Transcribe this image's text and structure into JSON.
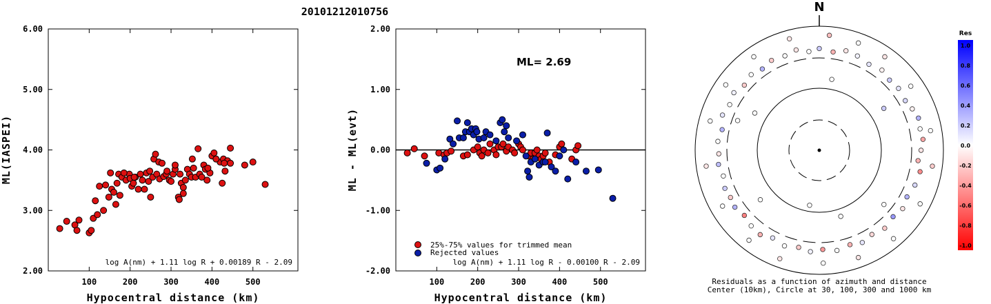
{
  "title": "20101212010756",
  "chart_data": [
    {
      "type": "scatter",
      "xlabel": "Hypocentral distance (km)",
      "ylabel": "ML(IASPEI)",
      "xlim": [
        0,
        610
      ],
      "ylim": [
        2.0,
        6.0
      ],
      "xticks": [
        100,
        200,
        300,
        400,
        500
      ],
      "yticks": [
        "2.00",
        "3.00",
        "4.00",
        "5.00",
        "6.00"
      ],
      "formula": "log A(nm) + 1.11 log R + 0.00189 R - 2.09",
      "point_color": "#dd1111",
      "series": [
        {
          "x": [
            28,
            45,
            65,
            70,
            75,
            100,
            105,
            110,
            115,
            120,
            125,
            135,
            148,
            152,
            155,
            165,
            168,
            172,
            175,
            180,
            190,
            198,
            200,
            204,
            208,
            213,
            220,
            225,
            230,
            235,
            240,
            245,
            250,
            255,
            258,
            262,
            265,
            270,
            272,
            278,
            282,
            288,
            290,
            296,
            300,
            305,
            310,
            318,
            320,
            322,
            325,
            330,
            335,
            340,
            345,
            350,
            355,
            360,
            366,
            370,
            375,
            380,
            384,
            388,
            395,
            400,
            405,
            420,
            425,
            428,
            432,
            438,
            445,
            480,
            500,
            530,
            140,
            160,
            185,
            210,
            248,
            310,
            330,
            352,
            390,
            410,
            430,
            445
          ],
          "y": [
            2.7,
            2.82,
            2.76,
            2.67,
            2.84,
            2.63,
            2.67,
            2.87,
            3.16,
            2.93,
            3.4,
            3.0,
            3.22,
            3.62,
            3.35,
            3.1,
            3.45,
            3.6,
            3.25,
            3.55,
            3.5,
            3.6,
            3.53,
            3.4,
            3.45,
            3.55,
            3.35,
            3.6,
            3.5,
            3.35,
            3.62,
            3.48,
            3.22,
            3.55,
            3.85,
            3.93,
            3.6,
            3.8,
            3.52,
            3.78,
            3.56,
            3.6,
            3.65,
            3.5,
            3.48,
            3.6,
            3.68,
            3.22,
            3.18,
            3.6,
            3.45,
            3.38,
            3.5,
            3.68,
            3.6,
            3.55,
            3.7,
            3.55,
            4.02,
            3.6,
            3.55,
            3.75,
            3.68,
            3.5,
            3.62,
            3.9,
            3.95,
            3.8,
            3.45,
            3.85,
            3.65,
            3.82,
            4.03,
            3.75,
            3.8,
            3.43,
            3.42,
            3.3,
            3.62,
            3.55,
            3.65,
            3.75,
            3.28,
            3.85,
            3.7,
            3.85,
            3.78,
            3.78
          ]
        }
      ]
    },
    {
      "type": "scatter",
      "xlabel": "Hypocentral distance (km)",
      "ylabel": "ML - ML(evt)",
      "xlim": [
        0,
        610
      ],
      "ylim": [
        -2.0,
        2.0
      ],
      "xticks": [
        100,
        200,
        300,
        400,
        500
      ],
      "yticks": [
        "-2.00",
        "-1.00",
        "0.00",
        "1.00",
        "2.00"
      ],
      "annotation": "ML= 2.69",
      "formula": "log A(nm) + 1.11 log R - 0.00100 R - 2.09",
      "series": [
        {
          "name": "25%-75% values for trimmed mean",
          "color": "#dd1111",
          "x": [
            28,
            45,
            70,
            105,
            118,
            125,
            135,
            165,
            175,
            190,
            200,
            205,
            210,
            215,
            225,
            230,
            240,
            245,
            250,
            258,
            262,
            270,
            275,
            285,
            290,
            300,
            305,
            310,
            325,
            330,
            335,
            340,
            345,
            350,
            355,
            360,
            365,
            375,
            390,
            400,
            405,
            430,
            440,
            445
          ],
          "y": [
            -0.05,
            0.02,
            -0.1,
            -0.05,
            -0.08,
            -0.05,
            -0.02,
            -0.1,
            -0.08,
            0.0,
            0.05,
            -0.05,
            -0.1,
            0.0,
            -0.05,
            0.1,
            0.0,
            -0.08,
            0.05,
            0.05,
            0.1,
            -0.02,
            0.05,
            0.0,
            -0.05,
            0.1,
            0.05,
            0.0,
            -0.1,
            -0.05,
            -0.15,
            -0.05,
            0.0,
            -0.1,
            -0.15,
            -0.1,
            -0.05,
            -0.2,
            -0.08,
            0.05,
            0.1,
            -0.15,
            0.0,
            0.07
          ]
        },
        {
          "name": "Rejected values",
          "color": "#0a1ea8",
          "x": [
            75,
            100,
            108,
            120,
            132,
            140,
            150,
            155,
            165,
            170,
            175,
            180,
            185,
            190,
            195,
            198,
            203,
            215,
            220,
            230,
            245,
            255,
            260,
            265,
            270,
            275,
            295,
            310,
            318,
            322,
            326,
            330,
            340,
            350,
            360,
            365,
            370,
            380,
            390,
            400,
            410,
            420,
            440,
            465,
            495,
            530
          ],
          "y": [
            -0.22,
            -0.33,
            -0.3,
            -0.15,
            0.18,
            0.1,
            0.48,
            0.2,
            0.2,
            0.3,
            0.45,
            0.3,
            0.35,
            0.25,
            0.35,
            0.3,
            0.18,
            0.2,
            0.3,
            0.25,
            0.15,
            0.45,
            0.5,
            0.3,
            0.4,
            0.2,
            0.15,
            0.25,
            -0.1,
            -0.35,
            -0.45,
            -0.2,
            -0.15,
            -0.25,
            -0.2,
            -0.2,
            0.28,
            -0.28,
            -0.35,
            -0.1,
            0.0,
            -0.48,
            -0.2,
            -0.35,
            -0.33,
            -0.8
          ]
        }
      ]
    },
    {
      "type": "polar-scatter",
      "north_label": "N",
      "caption_line1": "Residuals as a function of azimuth and distance",
      "caption_line2": "Center (10km), Circle at 30, 100, 300 and 1000 km",
      "colorbar": {
        "title": "Res",
        "ticks": [
          "1.0",
          "0.8",
          "0.6",
          "0.4",
          "0.2",
          "0.0",
          "-0.2",
          "-0.4",
          "-0.6",
          "-0.8",
          "-1.0"
        ],
        "max_color": "#0000ff",
        "zero_color": "#ffffff",
        "min_color": "#ff0000"
      },
      "points": [
        {
          "az": 0,
          "r": 0.82,
          "res": 0.2
        },
        {
          "az": 8,
          "r": 0.8,
          "res": -0.3
        },
        {
          "az": 15,
          "r": 0.83,
          "res": -0.1
        },
        {
          "az": 22,
          "r": 0.82,
          "res": 0.05
        },
        {
          "az": 30,
          "r": 0.8,
          "res": 0.1
        },
        {
          "az": 38,
          "r": 0.82,
          "res": -0.05
        },
        {
          "az": 45,
          "r": 0.8,
          "res": 0.2
        },
        {
          "az": 52,
          "r": 0.81,
          "res": 0.1
        },
        {
          "az": 60,
          "r": 0.8,
          "res": 0.15
        },
        {
          "az": 66,
          "r": 0.82,
          "res": -0.05
        },
        {
          "az": 72,
          "r": 0.84,
          "res": 0.3
        },
        {
          "az": 78,
          "r": 0.83,
          "res": 0.0
        },
        {
          "az": 84,
          "r": 0.84,
          "res": -0.35
        },
        {
          "az": 90,
          "r": 0.82,
          "res": -0.1
        },
        {
          "az": 96,
          "r": 0.8,
          "res": -0.3
        },
        {
          "az": 102,
          "r": 0.83,
          "res": -0.45
        },
        {
          "az": 110,
          "r": 0.82,
          "res": 0.15
        },
        {
          "az": 118,
          "r": 0.8,
          "res": 0.3
        },
        {
          "az": 125,
          "r": 0.82,
          "res": -0.1
        },
        {
          "az": 132,
          "r": 0.8,
          "res": 0.4
        },
        {
          "az": 140,
          "r": 0.82,
          "res": -0.2
        },
        {
          "az": 148,
          "r": 0.8,
          "res": -0.15
        },
        {
          "az": 155,
          "r": 0.82,
          "res": 0.1
        },
        {
          "az": 162,
          "r": 0.8,
          "res": -0.3
        },
        {
          "az": 170,
          "r": 0.82,
          "res": 0.0
        },
        {
          "az": 178,
          "r": 0.8,
          "res": -0.4
        },
        {
          "az": 185,
          "r": 0.82,
          "res": 0.05
        },
        {
          "az": 192,
          "r": 0.8,
          "res": -0.2
        },
        {
          "az": 200,
          "r": 0.82,
          "res": 0.0
        },
        {
          "az": 208,
          "r": 0.8,
          "res": 0.1
        },
        {
          "az": 215,
          "r": 0.83,
          "res": -0.3
        },
        {
          "az": 222,
          "r": 0.82,
          "res": 0.0
        },
        {
          "az": 229,
          "r": 0.8,
          "res": -0.5
        },
        {
          "az": 236,
          "r": 0.82,
          "res": 0.3
        },
        {
          "az": 242,
          "r": 0.81,
          "res": -0.2
        },
        {
          "az": 248,
          "r": 0.82,
          "res": 0.2
        },
        {
          "az": 255,
          "r": 0.8,
          "res": 0.0
        },
        {
          "az": 262,
          "r": 0.82,
          "res": 0.25
        },
        {
          "az": 268,
          "r": 0.81,
          "res": -0.1
        },
        {
          "az": 275,
          "r": 0.82,
          "res": 0.0
        },
        {
          "az": 282,
          "r": 0.8,
          "res": 0.3
        },
        {
          "az": 290,
          "r": 0.83,
          "res": 0.1
        },
        {
          "az": 297,
          "r": 0.81,
          "res": 0.0
        },
        {
          "az": 304,
          "r": 0.83,
          "res": 0.05
        },
        {
          "az": 311,
          "r": 0.8,
          "res": -0.2
        },
        {
          "az": 318,
          "r": 0.82,
          "res": 0.0
        },
        {
          "az": 325,
          "r": 0.8,
          "res": 0.3
        },
        {
          "az": 332,
          "r": 0.82,
          "res": -0.2
        },
        {
          "az": 340,
          "r": 0.81,
          "res": 0.0
        },
        {
          "az": 347,
          "r": 0.83,
          "res": -0.1
        },
        {
          "az": 354,
          "r": 0.8,
          "res": 0.0
        },
        {
          "az": 5,
          "r": 0.93,
          "res": -0.25
        },
        {
          "az": 20,
          "r": 0.92,
          "res": 0.0
        },
        {
          "az": 35,
          "r": 0.92,
          "res": -0.1
        },
        {
          "az": 55,
          "r": 0.9,
          "res": 0.0
        },
        {
          "az": 80,
          "r": 0.91,
          "res": 0.0
        },
        {
          "az": 98,
          "r": 0.92,
          "res": -0.2
        },
        {
          "az": 118,
          "r": 0.92,
          "res": 0.0
        },
        {
          "az": 140,
          "r": 0.93,
          "res": 0.0
        },
        {
          "az": 160,
          "r": 0.92,
          "res": -0.1
        },
        {
          "az": 178,
          "r": 0.91,
          "res": 0.0
        },
        {
          "az": 200,
          "r": 0.93,
          "res": -0.1
        },
        {
          "az": 218,
          "r": 0.92,
          "res": 0.0
        },
        {
          "az": 240,
          "r": 0.9,
          "res": 0.0
        },
        {
          "az": 262,
          "r": 0.92,
          "res": -0.1
        },
        {
          "az": 285,
          "r": 0.91,
          "res": 0.0
        },
        {
          "az": 305,
          "r": 0.92,
          "res": 0.0
        },
        {
          "az": 325,
          "r": 0.92,
          "res": 0.0
        },
        {
          "az": 345,
          "r": 0.93,
          "res": -0.1
        },
        {
          "az": 57,
          "r": 0.62,
          "res": 0.2
        },
        {
          "az": 300,
          "r": 0.6,
          "res": 0.0
        },
        {
          "az": 162,
          "r": 0.56,
          "res": 0.0
        },
        {
          "az": 230,
          "r": 0.62,
          "res": 0.0
        },
        {
          "az": 130,
          "r": 0.68,
          "res": 0.0
        },
        {
          "az": 10,
          "r": 0.58,
          "res": 0.0
        },
        {
          "az": 290,
          "r": 0.7,
          "res": 0.0
        },
        {
          "az": 190,
          "r": 0.45,
          "res": 0.0
        }
      ]
    }
  ]
}
